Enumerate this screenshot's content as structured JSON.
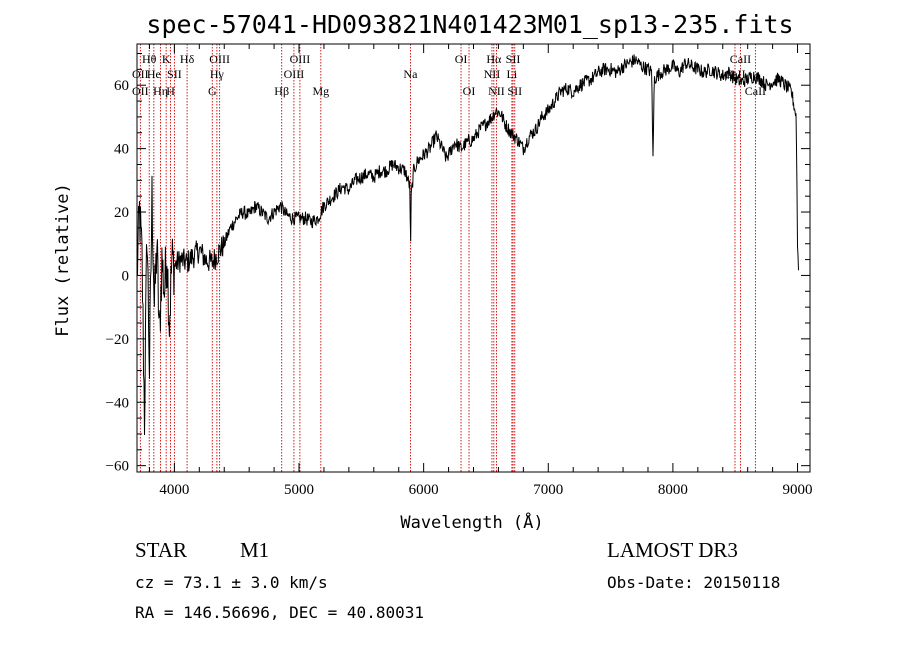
{
  "chart_data": {
    "type": "line",
    "title": "spec-57041-HD093821N401423M01_sp13-235.fits",
    "xlabel": "Wavelength (Å)",
    "ylabel": "Flux (relative)",
    "xlim": [
      3700,
      9100
    ],
    "ylim": [
      -62,
      73
    ],
    "xticks": [
      4000,
      5000,
      6000,
      7000,
      8000,
      9000
    ],
    "yticks": [
      -60,
      -40,
      -20,
      0,
      20,
      40,
      60
    ],
    "ytick_labels": [
      "−60",
      "−40",
      "−20",
      "0",
      "20",
      "40",
      "60"
    ],
    "series": [
      {
        "name": "flux",
        "anchors": [
          [
            3700,
            0
          ],
          [
            3720,
            20
          ],
          [
            3740,
            5
          ],
          [
            3760,
            -45
          ],
          [
            3780,
            15
          ],
          [
            3800,
            -30
          ],
          [
            3820,
            25
          ],
          [
            3840,
            -10
          ],
          [
            3860,
            10
          ],
          [
            3880,
            -20
          ],
          [
            3900,
            5
          ],
          [
            3920,
            -5
          ],
          [
            3940,
            8
          ],
          [
            3960,
            -15
          ],
          [
            3980,
            5
          ],
          [
            4000,
            3
          ],
          [
            4050,
            5
          ],
          [
            4100,
            4
          ],
          [
            4150,
            6
          ],
          [
            4200,
            8
          ],
          [
            4250,
            5
          ],
          [
            4300,
            4
          ],
          [
            4350,
            7
          ],
          [
            4400,
            10
          ],
          [
            4450,
            15
          ],
          [
            4500,
            18
          ],
          [
            4550,
            20
          ],
          [
            4600,
            19
          ],
          [
            4650,
            22
          ],
          [
            4700,
            20
          ],
          [
            4750,
            18
          ],
          [
            4800,
            20
          ],
          [
            4850,
            22
          ],
          [
            4900,
            19
          ],
          [
            4950,
            18
          ],
          [
            5000,
            18
          ],
          [
            5050,
            18
          ],
          [
            5100,
            17
          ],
          [
            5150,
            18
          ],
          [
            5200,
            22
          ],
          [
            5250,
            24
          ],
          [
            5300,
            26
          ],
          [
            5350,
            28
          ],
          [
            5400,
            27
          ],
          [
            5450,
            30
          ],
          [
            5500,
            31
          ],
          [
            5550,
            32
          ],
          [
            5600,
            31
          ],
          [
            5650,
            33
          ],
          [
            5700,
            33
          ],
          [
            5750,
            35
          ],
          [
            5800,
            34
          ],
          [
            5850,
            33
          ],
          [
            5890,
            28
          ],
          [
            5895,
            5
          ],
          [
            5900,
            25
          ],
          [
            5920,
            33
          ],
          [
            5950,
            36
          ],
          [
            6000,
            38
          ],
          [
            6050,
            40
          ],
          [
            6100,
            44
          ],
          [
            6150,
            40
          ],
          [
            6180,
            37
          ],
          [
            6200,
            38
          ],
          [
            6250,
            42
          ],
          [
            6300,
            40
          ],
          [
            6350,
            42
          ],
          [
            6400,
            43
          ],
          [
            6450,
            46
          ],
          [
            6500,
            48
          ],
          [
            6550,
            50
          ],
          [
            6580,
            52
          ],
          [
            6620,
            51
          ],
          [
            6650,
            48
          ],
          [
            6700,
            45
          ],
          [
            6750,
            43
          ],
          [
            6800,
            40
          ],
          [
            6850,
            44
          ],
          [
            6900,
            46
          ],
          [
            6950,
            50
          ],
          [
            7000,
            52
          ],
          [
            7050,
            55
          ],
          [
            7100,
            58
          ],
          [
            7150,
            59
          ],
          [
            7200,
            58
          ],
          [
            7250,
            60
          ],
          [
            7300,
            61
          ],
          [
            7350,
            62
          ],
          [
            7400,
            64
          ],
          [
            7450,
            65
          ],
          [
            7500,
            65
          ],
          [
            7550,
            64
          ],
          [
            7600,
            66
          ],
          [
            7650,
            67
          ],
          [
            7700,
            68
          ],
          [
            7750,
            66
          ],
          [
            7800,
            65
          ],
          [
            7830,
            64
          ],
          [
            7840,
            36
          ],
          [
            7850,
            62
          ],
          [
            7900,
            64
          ],
          [
            7950,
            65
          ],
          [
            8000,
            66
          ],
          [
            8050,
            64
          ],
          [
            8100,
            67
          ],
          [
            8150,
            66
          ],
          [
            8200,
            65
          ],
          [
            8250,
            64
          ],
          [
            8300,
            65
          ],
          [
            8350,
            64
          ],
          [
            8400,
            63
          ],
          [
            8450,
            64
          ],
          [
            8500,
            62
          ],
          [
            8550,
            61
          ],
          [
            8600,
            62
          ],
          [
            8650,
            63
          ],
          [
            8700,
            62
          ],
          [
            8750,
            60
          ],
          [
            8800,
            61
          ],
          [
            8850,
            62
          ],
          [
            8900,
            60
          ],
          [
            8950,
            58
          ],
          [
            8990,
            50
          ],
          [
            9000,
            10
          ],
          [
            9010,
            0
          ]
        ]
      }
    ],
    "lines": [
      {
        "name": "OII",
        "wavelength": 3727,
        "label_row": 2
      },
      {
        "name": "OII",
        "wavelength": 3727,
        "label_row": 3
      },
      {
        "name": "Hθ",
        "wavelength": 3798,
        "label_row": 1
      },
      {
        "name": "He",
        "wavelength": 3835,
        "label_row": 2
      },
      {
        "name": "Hη",
        "wavelength": 3889,
        "label_row": 3
      },
      {
        "name": "K",
        "wavelength": 3934,
        "label_row": 1
      },
      {
        "name": "SII",
        "wavelength": 4000,
        "label_row": 2
      },
      {
        "name": "H",
        "wavelength": 3969,
        "label_row": 3
      },
      {
        "name": "Hδ",
        "wavelength": 4102,
        "label_row": 1
      },
      {
        "name": "OIII",
        "wavelength": 4363,
        "label_row": 1
      },
      {
        "name": "Hγ",
        "wavelength": 4341,
        "label_row": 2
      },
      {
        "name": "G",
        "wavelength": 4304,
        "label_row": 3
      },
      {
        "name": "Hβ",
        "wavelength": 4861,
        "label_row": 3
      },
      {
        "name": "OIII",
        "wavelength": 4959,
        "label_row": 2
      },
      {
        "name": "OIII",
        "wavelength": 5007,
        "label_row": 1
      },
      {
        "name": "Mg",
        "wavelength": 5175,
        "label_row": 3
      },
      {
        "name": "Na",
        "wavelength": 5894,
        "label_row": 2
      },
      {
        "name": "OI",
        "wavelength": 6300,
        "label_row": 1
      },
      {
        "name": "OI",
        "wavelength": 6364,
        "label_row": 3
      },
      {
        "name": "Hα",
        "wavelength": 6563,
        "label_row": 1
      },
      {
        "name": "NII",
        "wavelength": 6548,
        "label_row": 2
      },
      {
        "name": "NII",
        "wavelength": 6584,
        "label_row": 3
      },
      {
        "name": "SII",
        "wavelength": 6717,
        "label_row": 1
      },
      {
        "name": "Li",
        "wavelength": 6708,
        "label_row": 2
      },
      {
        "name": "SII",
        "wavelength": 6731,
        "label_row": 3
      },
      {
        "name": "CaII",
        "wavelength": 8542,
        "label_row": 1
      },
      {
        "name": "CaII",
        "wavelength": 8498,
        "label_row": 2
      },
      {
        "name": "CaII",
        "wavelength": 8662,
        "label_row": 3
      }
    ],
    "line_color": "#cc0000",
    "curve_color": "#000000"
  },
  "info": {
    "object_class": "STAR",
    "subclass": "M1",
    "survey": "LAMOST DR3",
    "velocity": "cz = 73.1 ± 3.0 km/s",
    "obs_date": "Obs-Date: 20150118",
    "coords": "RA = 146.56696, DEC =  40.80031"
  }
}
